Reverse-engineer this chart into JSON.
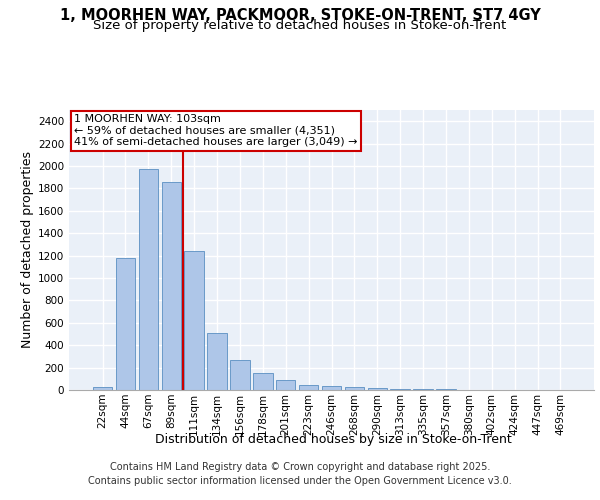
{
  "title_line1": "1, MOORHEN WAY, PACKMOOR, STOKE-ON-TRENT, ST7 4GY",
  "title_line2": "Size of property relative to detached houses in Stoke-on-Trent",
  "xlabel": "Distribution of detached houses by size in Stoke-on-Trent",
  "ylabel": "Number of detached properties",
  "categories": [
    "22sqm",
    "44sqm",
    "67sqm",
    "89sqm",
    "111sqm",
    "134sqm",
    "156sqm",
    "178sqm",
    "201sqm",
    "223sqm",
    "246sqm",
    "268sqm",
    "290sqm",
    "313sqm",
    "335sqm",
    "357sqm",
    "380sqm",
    "402sqm",
    "424sqm",
    "447sqm",
    "469sqm"
  ],
  "values": [
    28,
    1175,
    1975,
    1855,
    1240,
    510,
    270,
    155,
    90,
    48,
    40,
    28,
    18,
    12,
    8,
    5,
    3,
    2,
    2,
    1,
    1
  ],
  "bar_color": "#aec6e8",
  "bar_edge_color": "#5a8fc2",
  "annotation_line1": "1 MOORHEN WAY: 103sqm",
  "annotation_line2": "← 59% of detached houses are smaller (4,351)",
  "annotation_line3": "41% of semi-detached houses are larger (3,049) →",
  "annotation_box_color": "#ffffff",
  "annotation_box_edge_color": "#cc0000",
  "vline_x_index": 3.5,
  "vline_color": "#cc0000",
  "ylim": [
    0,
    2500
  ],
  "yticks": [
    0,
    200,
    400,
    600,
    800,
    1000,
    1200,
    1400,
    1600,
    1800,
    2000,
    2200,
    2400
  ],
  "background_color": "#eaf0f8",
  "grid_color": "#ffffff",
  "footer_line1": "Contains HM Land Registry data © Crown copyright and database right 2025.",
  "footer_line2": "Contains public sector information licensed under the Open Government Licence v3.0.",
  "title_fontsize": 10.5,
  "subtitle_fontsize": 9.5,
  "axis_label_fontsize": 9,
  "tick_fontsize": 7.5,
  "footer_fontsize": 7,
  "annotation_fontsize": 8
}
